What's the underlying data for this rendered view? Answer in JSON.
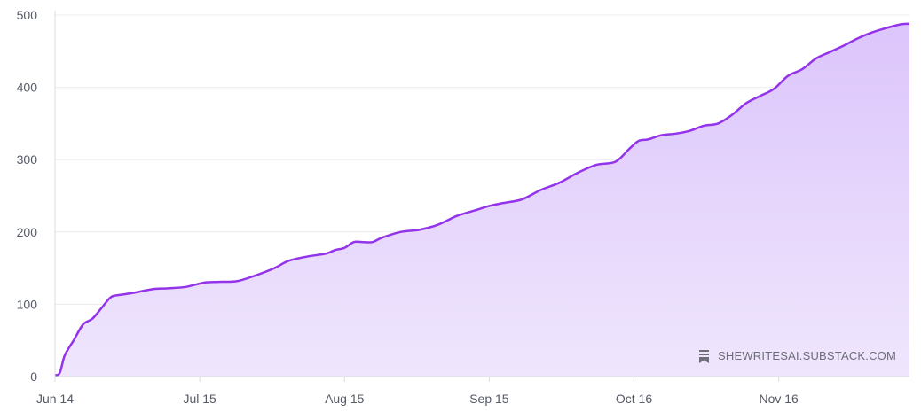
{
  "chart_data": {
    "type": "area",
    "title": "",
    "xlabel": "",
    "ylabel": "",
    "ylim": [
      0,
      500
    ],
    "y_ticks": [
      "0",
      "100",
      "200",
      "300",
      "400",
      "500"
    ],
    "x_ticks": [
      "Jun 14",
      "Jul 15",
      "Aug 15",
      "Sep 15",
      "Oct 16",
      "Nov 16"
    ],
    "x_tick_dates": [
      "2024-06-14",
      "2024-07-15",
      "2024-08-15",
      "2024-09-15",
      "2024-10-16",
      "2024-11-16"
    ],
    "x_range": [
      "2024-06-14",
      "2024-12-14"
    ],
    "grid": true,
    "legend": "none",
    "colors": {
      "line": "#9333ea",
      "fill_top": "#dcc5fb",
      "fill_bottom": "#efe6fd"
    },
    "series": [
      {
        "x": [
          "2024-06-14",
          "2024-06-15",
          "2024-06-16",
          "2024-06-17",
          "2024-06-18",
          "2024-06-20",
          "2024-06-22",
          "2024-06-24",
          "2024-06-26",
          "2024-06-28",
          "2024-07-01",
          "2024-07-05",
          "2024-07-08",
          "2024-07-12",
          "2024-07-16",
          "2024-07-19",
          "2024-07-23",
          "2024-07-27",
          "2024-07-31",
          "2024-08-03",
          "2024-08-07",
          "2024-08-11",
          "2024-08-13",
          "2024-08-15",
          "2024-08-17",
          "2024-08-19",
          "2024-08-21",
          "2024-08-23",
          "2024-08-27",
          "2024-08-31",
          "2024-09-04",
          "2024-09-08",
          "2024-09-12",
          "2024-09-15",
          "2024-09-18",
          "2024-09-22",
          "2024-09-26",
          "2024-09-30",
          "2024-10-04",
          "2024-10-08",
          "2024-10-12",
          "2024-10-15",
          "2024-10-17",
          "2024-10-19",
          "2024-10-22",
          "2024-10-25",
          "2024-10-28",
          "2024-10-31",
          "2024-11-03",
          "2024-11-06",
          "2024-11-09",
          "2024-11-12",
          "2024-11-15",
          "2024-11-18",
          "2024-11-21",
          "2024-11-24",
          "2024-11-27",
          "2024-11-30",
          "2024-12-03",
          "2024-12-06",
          "2024-12-09",
          "2024-12-12",
          "2024-12-14"
        ],
        "y": [
          2,
          5,
          28,
          40,
          50,
          72,
          80,
          95,
          110,
          113,
          116,
          121,
          122,
          124,
          130,
          131,
          132,
          140,
          150,
          160,
          166,
          170,
          175,
          178,
          186,
          186,
          186,
          192,
          200,
          203,
          210,
          222,
          230,
          236,
          240,
          245,
          258,
          268,
          282,
          293,
          297,
          315,
          326,
          328,
          334,
          336,
          340,
          347,
          350,
          362,
          378,
          388,
          398,
          416,
          425,
          440,
          449,
          458,
          468,
          476,
          482,
          487,
          488
        ]
      }
    ]
  },
  "watermark": {
    "icon": "bookmark-icon",
    "text": "SHEWRITESAI.SUBSTACK.COM"
  }
}
